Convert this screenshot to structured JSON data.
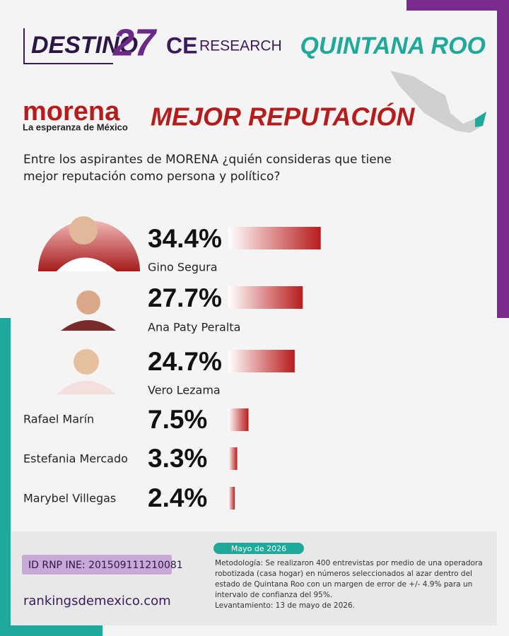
{
  "header": {
    "brand": "DESTINO",
    "brand_number": "27",
    "partner": "CE",
    "partner_suffix": "RESEARCH",
    "region": "QUINTANA ROO"
  },
  "party": {
    "name": "morena",
    "tagline": "La esperanza de México"
  },
  "chart_data": {
    "type": "bar",
    "title": "MEJOR REPUTACIÓN",
    "subtitle": [
      "Entre los aspirantes de MORENA ¿quién consideras que tiene",
      "mejor reputación como persona y político?"
    ],
    "categories": [
      "Gino Segura",
      "Ana Paty Peralta",
      "Vero Lezama",
      "Rafael Marín",
      "Estefania Mercado",
      "Marybel Villegas"
    ],
    "values": [
      34.4,
      27.7,
      24.7,
      7.5,
      3.3,
      2.4
    ],
    "value_labels": [
      "34.4%",
      "27.7%",
      "24.7%",
      "7.5%",
      "3.3%",
      "2.4%"
    ],
    "color": "#b71c1c"
  },
  "footer": {
    "date": "Mayo de 2026",
    "methodology": [
      "Metodología: Se realizaron 400 entrevistas por medio de una operadora",
      "robotizada (casa hogar) en números seleccionados al azar dentro del",
      "estado de Quintana Roo con un margen de error de +/- 4.9% para un",
      "intervalo de confianza del 95%.",
      "Levantamiento: 13 de mayo de 2026."
    ],
    "id": "ID RNP INE: 201509111210081",
    "website": "rankingsdemexico.com"
  }
}
